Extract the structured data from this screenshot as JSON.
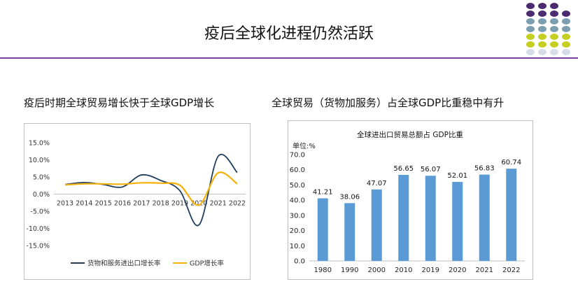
{
  "slide": {
    "title": "疫后全球化进程仍然活跃"
  },
  "left": {
    "section_title": "疫后时期全球贸易增长快于全球GDP增长",
    "chart_data": {
      "type": "line",
      "title": "",
      "x": [
        "2013",
        "2014",
        "2015",
        "2016",
        "2017",
        "2018",
        "2019",
        "2020",
        "2021",
        "2022"
      ],
      "y_ticks": [
        "15.0%",
        "10.0%",
        "5.0%",
        "0.0%",
        "-5.0%",
        "-10.0%",
        "-15.0%"
      ],
      "ylim": [
        -15,
        15
      ],
      "legend_position": "bottom",
      "grid": false,
      "series": [
        {
          "name": "货物和服务进出口增长率",
          "color": "#1f3f5f",
          "values": [
            2.8,
            3.4,
            2.8,
            2.1,
            5.6,
            4.0,
            1.0,
            -9.0,
            11.0,
            6.3
          ]
        },
        {
          "name": "GDP增长率",
          "color": "#f5b20c",
          "values": [
            2.7,
            3.0,
            3.0,
            2.9,
            3.3,
            3.2,
            2.6,
            -3.2,
            6.2,
            3.0
          ]
        }
      ]
    }
  },
  "right": {
    "section_title": "全球贸易（货物加服务）占全球GDP比重稳中有升",
    "chart_data": {
      "type": "bar",
      "title": "全球进出口贸易总额占 GDP比重",
      "unit_label": "单位:%",
      "categories": [
        "1980",
        "1990",
        "2000",
        "2010",
        "2019",
        "2020",
        "2021",
        "2022"
      ],
      "values": [
        41.21,
        38.06,
        47.07,
        56.65,
        56.07,
        52.01,
        56.83,
        60.74
      ],
      "value_labels": [
        "41.21",
        "38.06",
        "47.07",
        "56.65",
        "56.07",
        "52.01",
        "56.83",
        "60.74"
      ],
      "y_ticks": [
        "70.0",
        "60.0",
        "50.0",
        "40.0",
        "30.0",
        "20.0",
        "10.0",
        "0.0"
      ],
      "ylim": [
        0,
        70
      ],
      "bar_color": "#5b9bd5",
      "grid": false
    }
  },
  "decor": {
    "dot_colors": [
      "#4b2a6f",
      "#7d9eb0",
      "#c4cf1f",
      "#d7dcea"
    ]
  }
}
